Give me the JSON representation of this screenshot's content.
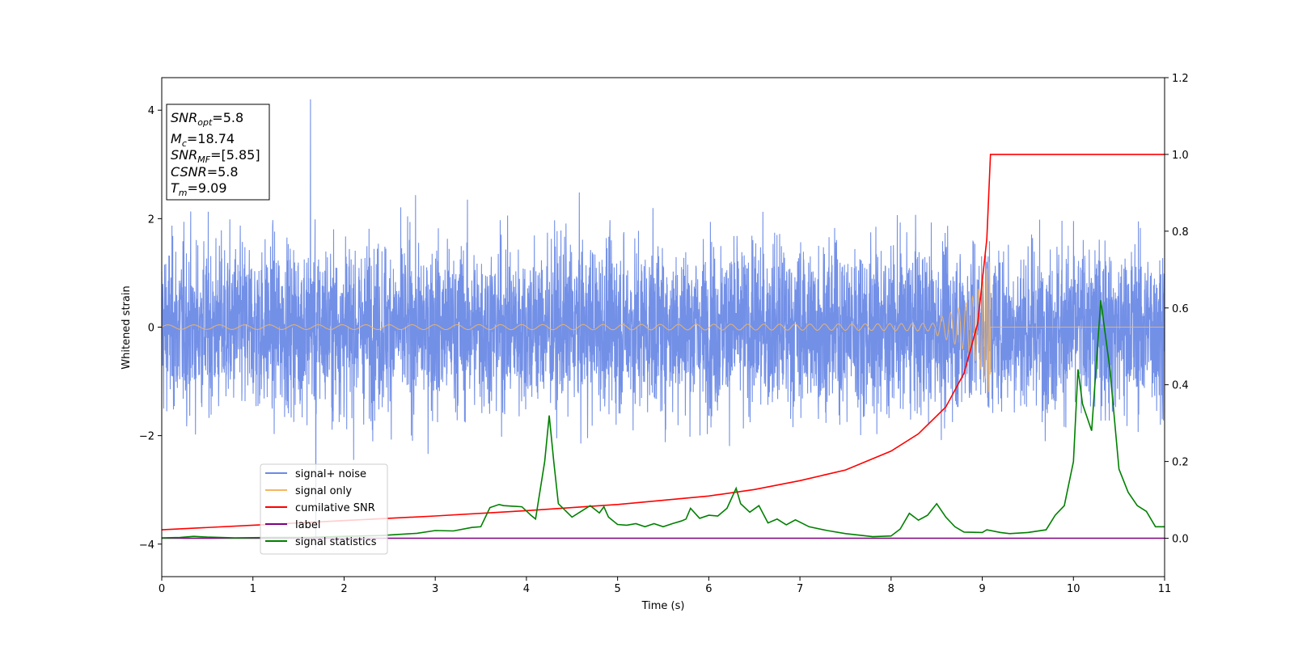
{
  "chart_data": {
    "type": "line",
    "xlabel": "Time (s)",
    "ylabel_left": "Whitened strain",
    "ylabel_right": "",
    "xlim": [
      0,
      11
    ],
    "ylim_left": [
      -4.6,
      4.6
    ],
    "ylim_right": [
      -0.1,
      1.2
    ],
    "x_ticks": [
      0,
      1,
      2,
      3,
      4,
      5,
      6,
      7,
      8,
      9,
      10,
      11
    ],
    "y_left_ticks": [
      -4,
      -2,
      0,
      2,
      4
    ],
    "y_left_tick_labels": [
      "−4",
      "−2",
      "0",
      "2",
      "4"
    ],
    "y_right_ticks": [
      0.0,
      0.2,
      0.4,
      0.6,
      0.8,
      1.0,
      1.2
    ],
    "y_right_tick_labels": [
      "0.0",
      "0.2",
      "0.4",
      "0.6",
      "0.8",
      "1.0",
      "1.2"
    ],
    "legend_placement": "lower-left",
    "annotation": {
      "snr_opt_base": "SNR",
      "snr_opt_sub": "opt",
      "snr_opt_value": "=5.8",
      "mc_base": "M",
      "mc_sub": "c",
      "mc_value": "=18.74",
      "snr_mf_base": "SNR",
      "snr_mf_sub": "MF",
      "snr_mf_value": "=[5.85]",
      "csnr_base": "CSNR",
      "csnr_value": "=5.8",
      "tm_base": "T",
      "tm_sub": "m",
      "tm_value": "=9.09"
    },
    "series": [
      {
        "name": "signal+ noise",
        "axis": "left",
        "color": "#6b8ae6",
        "description_envelope": {
          "typical_range": [
            -2.0,
            2.0
          ],
          "max": 4.2,
          "min": -4.1,
          "max_at": 1.63,
          "min_at": 1.69
        }
      },
      {
        "name": "signal only",
        "axis": "left",
        "color": "#f5b65f",
        "chirp": {
          "start": 0,
          "end": 9.09,
          "final_amplitude": 1.2
        }
      },
      {
        "name": "cumilative SNR",
        "axis": "right",
        "color": "#ff0000",
        "x": [
          0,
          1,
          2,
          3,
          4,
          5,
          6,
          6.5,
          7,
          7.5,
          8,
          8.3,
          8.6,
          8.8,
          8.95,
          9.05,
          9.09,
          9.1,
          11
        ],
        "y": [
          0.022,
          0.034,
          0.046,
          0.058,
          0.072,
          0.088,
          0.11,
          0.127,
          0.15,
          0.178,
          0.227,
          0.272,
          0.342,
          0.43,
          0.56,
          0.78,
          1.0,
          1.0,
          1.0
        ]
      },
      {
        "name": "label",
        "axis": "right",
        "color": "#800080",
        "x": [
          0,
          11
        ],
        "y": [
          0.0,
          0.0
        ]
      },
      {
        "name": "signal statistics",
        "axis": "right",
        "color": "#008000",
        "x": [
          0,
          0.2,
          0.35,
          0.5,
          0.8,
          1.2,
          1.6,
          2.0,
          2.4,
          2.8,
          3.0,
          3.2,
          3.4,
          3.5,
          3.55,
          3.6,
          3.7,
          3.75,
          3.95,
          4.05,
          4.1,
          4.2,
          4.25,
          4.3,
          4.35,
          4.5,
          4.6,
          4.7,
          4.8,
          4.85,
          4.9,
          5.0,
          5.1,
          5.2,
          5.3,
          5.4,
          5.5,
          5.6,
          5.7,
          5.75,
          5.8,
          5.9,
          6.0,
          6.1,
          6.2,
          6.3,
          6.35,
          6.45,
          6.55,
          6.65,
          6.75,
          6.85,
          6.95,
          7.1,
          7.3,
          7.5,
          7.8,
          8.0,
          8.1,
          8.2,
          8.3,
          8.4,
          8.5,
          8.6,
          8.7,
          8.8,
          9.0,
          9.05,
          9.2,
          9.3,
          9.5,
          9.7,
          9.8,
          9.9,
          10.0,
          10.05,
          10.1,
          10.2,
          10.3,
          10.4,
          10.5,
          10.6,
          10.7,
          10.8,
          10.9,
          11.0
        ],
        "y": [
          0.001,
          0.002,
          0.005,
          0.003,
          0.001,
          0.002,
          0.002,
          0.005,
          0.007,
          0.013,
          0.02,
          0.019,
          0.028,
          0.03,
          0.055,
          0.08,
          0.088,
          0.085,
          0.082,
          0.06,
          0.05,
          0.2,
          0.32,
          0.2,
          0.09,
          0.055,
          0.07,
          0.085,
          0.066,
          0.082,
          0.055,
          0.036,
          0.034,
          0.038,
          0.03,
          0.038,
          0.03,
          0.038,
          0.045,
          0.05,
          0.078,
          0.052,
          0.06,
          0.058,
          0.078,
          0.13,
          0.09,
          0.068,
          0.085,
          0.04,
          0.05,
          0.035,
          0.048,
          0.03,
          0.02,
          0.012,
          0.004,
          0.006,
          0.024,
          0.065,
          0.047,
          0.06,
          0.09,
          0.055,
          0.03,
          0.016,
          0.015,
          0.022,
          0.015,
          0.012,
          0.015,
          0.022,
          0.06,
          0.085,
          0.2,
          0.44,
          0.35,
          0.28,
          0.62,
          0.44,
          0.18,
          0.12,
          0.085,
          0.07,
          0.03,
          0.03
        ]
      }
    ]
  }
}
